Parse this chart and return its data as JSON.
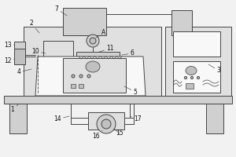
{
  "fig_bg": "#f2f2f2",
  "lc": "#444444",
  "lw": 0.7,
  "gray1": "#d0d0d0",
  "gray2": "#e0e0e0",
  "gray3": "#c0c0c0",
  "white": "#f8f8f8"
}
